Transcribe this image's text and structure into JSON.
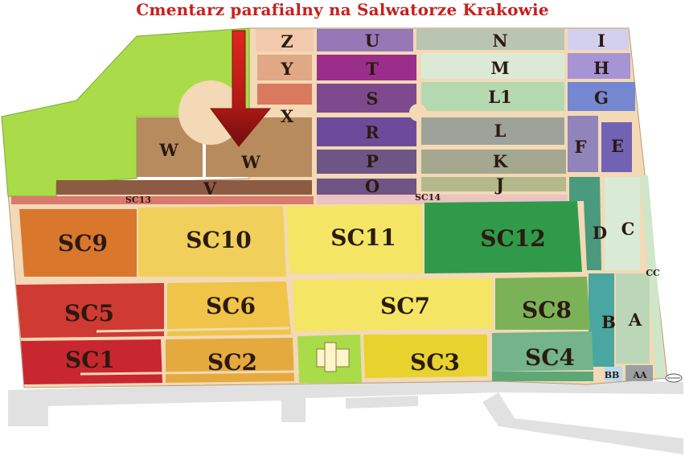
{
  "title": "Cmentarz parafialny na Salwatorze Krakowie",
  "sections": {
    "Z": "Z",
    "Y": "Y",
    "X": "X",
    "U": "U",
    "T": "T",
    "S": "S",
    "R": "R",
    "P": "P",
    "O": "O",
    "N": "N",
    "M": "M",
    "L1": "L1",
    "L": "L",
    "K": "K",
    "J": "J",
    "I": "I",
    "H": "H",
    "G": "G",
    "F": "F",
    "E": "E",
    "W1": "W",
    "W2": "W",
    "V": "V",
    "SC13": "SC13",
    "SC14": "SC14",
    "SC9": "SC9",
    "SC10": "SC10",
    "SC11": "SC11",
    "SC12": "SC12",
    "D": "D",
    "C": "C",
    "CC": "CC",
    "SC5": "SC5",
    "SC6": "SC6",
    "SC7": "SC7",
    "SC8": "SC8",
    "B": "B",
    "A": "A",
    "SC1": "SC1",
    "SC2": "SC2",
    "SC3": "SC3",
    "SC4": "SC4",
    "BB": "BB",
    "AA": "AA"
  },
  "colors": {
    "title": "#c8201e",
    "paths": "#f3d9b5",
    "green_area": "#a9dc48",
    "arrow": "#c8201e"
  },
  "icons": {
    "direction": "down-arrow-icon",
    "chapel": "chapel-icon",
    "compass": "compass-icon"
  }
}
